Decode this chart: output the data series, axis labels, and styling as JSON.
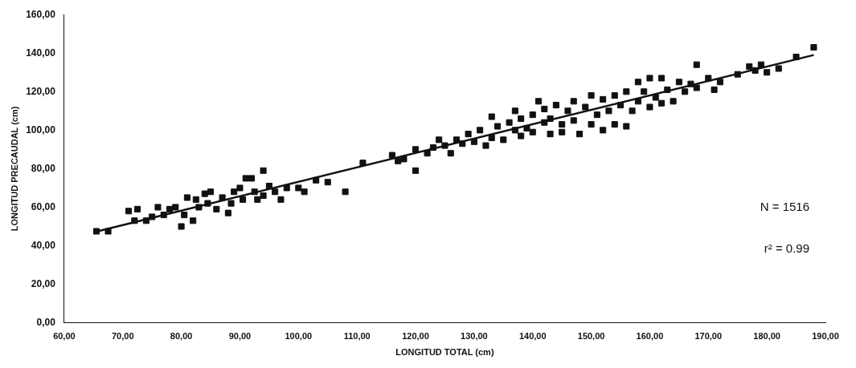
{
  "chart_data": {
    "type": "scatter",
    "xlabel": "LONGITUD TOTAL (cm)",
    "ylabel": "LONGITUD PRECAUDAL (cm)",
    "xlim": [
      60,
      190
    ],
    "ylim": [
      0,
      160
    ],
    "xticks": [
      {
        "value": 60,
        "label": "60,00"
      },
      {
        "value": 70,
        "label": "70,00"
      },
      {
        "value": 80,
        "label": "80,00"
      },
      {
        "value": 90,
        "label": "90,00"
      },
      {
        "value": 100,
        "label": "100,00"
      },
      {
        "value": 110,
        "label": "110,00"
      },
      {
        "value": 120,
        "label": "120,00"
      },
      {
        "value": 130,
        "label": "130,00"
      },
      {
        "value": 140,
        "label": "140,00"
      },
      {
        "value": 150,
        "label": "150,00"
      },
      {
        "value": 160,
        "label": "160,00"
      },
      {
        "value": 170,
        "label": "170,00"
      },
      {
        "value": 180,
        "label": "180,00"
      },
      {
        "value": 190,
        "label": "190,00"
      }
    ],
    "yticks": [
      {
        "value": 0,
        "label": "0,00"
      },
      {
        "value": 20,
        "label": "20,00"
      },
      {
        "value": 40,
        "label": "40,00"
      },
      {
        "value": 60,
        "label": "60,00"
      },
      {
        "value": 80,
        "label": "80,00"
      },
      {
        "value": 100,
        "label": "100,00"
      },
      {
        "value": 120,
        "label": "120,00"
      },
      {
        "value": 140,
        "label": "140,00"
      },
      {
        "value": 160,
        "label": "160,00"
      }
    ],
    "grid": false,
    "legend": false,
    "series": [
      {
        "marker": "square",
        "color": "#111111",
        "x": [
          65.5,
          67.5,
          71,
          72,
          72.5,
          74,
          75,
          76,
          77,
          78,
          79,
          80,
          80.5,
          81,
          82,
          82.5,
          83,
          84,
          84.5,
          85,
          86,
          87,
          88,
          88.5,
          89,
          90,
          90.5,
          91,
          92,
          92.5,
          93,
          94,
          94,
          95,
          96,
          97,
          98,
          100,
          101,
          103,
          105,
          108,
          111,
          116,
          117,
          118,
          120,
          120,
          122,
          123,
          124,
          125,
          126,
          127,
          128,
          129,
          130,
          131,
          132,
          133,
          133,
          134,
          135,
          136,
          137,
          137,
          138,
          138,
          139,
          140,
          140,
          141,
          142,
          142,
          143,
          143,
          144,
          145,
          145,
          146,
          147,
          147,
          148,
          149,
          150,
          150,
          151,
          152,
          152,
          153,
          154,
          154,
          155,
          156,
          156,
          157,
          158,
          158,
          159,
          160,
          160,
          161,
          162,
          162,
          163,
          164,
          165,
          166,
          167,
          168,
          168,
          170,
          171,
          172,
          175,
          177,
          178,
          179,
          180,
          182,
          185,
          188
        ],
        "values": [
          47.5,
          47.5,
          58,
          53,
          59,
          53,
          55,
          60,
          56,
          59,
          60,
          50,
          56,
          65,
          53,
          64,
          60,
          67,
          62,
          68,
          59,
          65,
          57,
          62,
          68,
          70,
          64,
          75,
          75,
          68,
          64,
          79,
          66,
          71,
          68,
          64,
          70,
          70,
          68,
          74,
          73,
          68,
          83,
          87,
          84,
          85,
          90,
          79,
          88,
          91,
          95,
          92,
          88,
          95,
          93,
          98,
          94,
          100,
          92,
          96,
          107,
          102,
          95,
          104,
          100,
          110,
          97,
          106,
          101,
          99,
          108,
          115,
          104,
          111,
          98,
          106,
          113,
          103,
          99,
          110,
          105,
          115,
          98,
          112,
          118,
          103,
          108,
          116,
          100,
          110,
          118,
          103,
          113,
          102,
          120,
          110,
          125,
          115,
          120,
          127,
          112,
          117,
          127,
          114,
          121,
          115,
          125,
          120,
          124,
          134,
          122,
          127,
          121,
          125,
          129,
          133,
          131,
          134,
          130,
          132,
          138,
          143
        ]
      },
      {
        "type": "line",
        "marker": "none",
        "color": "#111111",
        "x": [
          65,
          188
        ],
        "values": [
          47,
          139
        ]
      }
    ],
    "annotations": [
      "N = 1516",
      "r² = 0.99"
    ]
  }
}
